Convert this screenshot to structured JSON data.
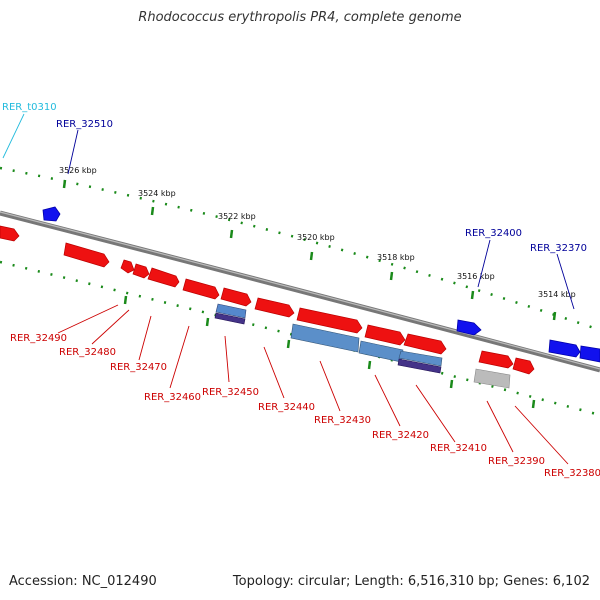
{
  "title": "Rhodococcus erythropolis PR4, complete genome",
  "footer": {
    "accession": "Accession: NC_012490",
    "summary": "Topology: circular; Length: 6,516,310 bp; Genes: 6,102"
  },
  "colors": {
    "backbone": "#8a8a8a",
    "tick": "#1a8a1a",
    "red_gene": "#ee1111",
    "blue_gene": "#1111ee",
    "rna_label": "#22bbdd",
    "forward_label": "#000099",
    "reverse_label": "#cc0000"
  },
  "scale_labels": [
    "3526 kbp",
    "3524 kbp",
    "3522 kbp",
    "3520 kbp",
    "3518 kbp",
    "3516 kbp",
    "3514 kbp"
  ],
  "forward_labels": [
    "RER_t0310",
    "RER_32510",
    "RER_32400",
    "RER_32370"
  ],
  "reverse_labels": [
    "RER_32490",
    "RER_32480",
    "RER_32470",
    "RER_32460",
    "RER_32450",
    "RER_32440",
    "RER_32430",
    "RER_32420",
    "RER_32410",
    "RER_32390",
    "RER_32380"
  ]
}
